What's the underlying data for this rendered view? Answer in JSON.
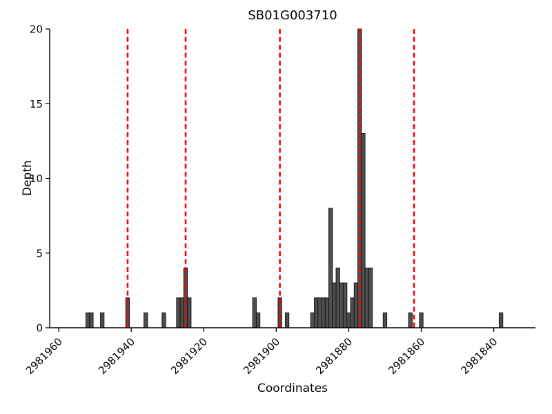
{
  "chart_data": {
    "type": "bar",
    "title": "SB01G003710",
    "xlabel": "Coordinates",
    "ylabel": "Depth",
    "x_axis_reversed": true,
    "xlim": [
      2981962.5,
      2981828.5
    ],
    "ylim": [
      0,
      20
    ],
    "x_ticks": [
      2981960,
      2981940,
      2981920,
      2981900,
      2981880,
      2981860,
      2981840
    ],
    "y_ticks": [
      0,
      5,
      10,
      15,
      20
    ],
    "legend": "none",
    "grid": false,
    "bar_width_units": 1,
    "colors": {
      "bar_fill": "#4f4f4f",
      "bar_edge": "#141414",
      "vline": "#ff0000",
      "axis": "#000000",
      "background": "#ffffff"
    },
    "vlines": [
      2981941,
      2981925,
      2981899,
      2981877,
      2981862
    ],
    "bars": [
      {
        "coordinate": 2981952,
        "depth": 1
      },
      {
        "coordinate": 2981951,
        "depth": 1
      },
      {
        "coordinate": 2981948,
        "depth": 1
      },
      {
        "coordinate": 2981941,
        "depth": 2
      },
      {
        "coordinate": 2981936,
        "depth": 1
      },
      {
        "coordinate": 2981931,
        "depth": 1
      },
      {
        "coordinate": 2981927,
        "depth": 2
      },
      {
        "coordinate": 2981926,
        "depth": 2
      },
      {
        "coordinate": 2981925,
        "depth": 4
      },
      {
        "coordinate": 2981924,
        "depth": 2
      },
      {
        "coordinate": 2981906,
        "depth": 2
      },
      {
        "coordinate": 2981905,
        "depth": 1
      },
      {
        "coordinate": 2981899,
        "depth": 2
      },
      {
        "coordinate": 2981897,
        "depth": 1
      },
      {
        "coordinate": 2981890,
        "depth": 1
      },
      {
        "coordinate": 2981889,
        "depth": 2
      },
      {
        "coordinate": 2981888,
        "depth": 2
      },
      {
        "coordinate": 2981887,
        "depth": 2
      },
      {
        "coordinate": 2981886,
        "depth": 2
      },
      {
        "coordinate": 2981885,
        "depth": 8
      },
      {
        "coordinate": 2981884,
        "depth": 3
      },
      {
        "coordinate": 2981883,
        "depth": 4
      },
      {
        "coordinate": 2981882,
        "depth": 3
      },
      {
        "coordinate": 2981881,
        "depth": 3
      },
      {
        "coordinate": 2981880,
        "depth": 1
      },
      {
        "coordinate": 2981879,
        "depth": 2
      },
      {
        "coordinate": 2981878,
        "depth": 3
      },
      {
        "coordinate": 2981877,
        "depth": 20
      },
      {
        "coordinate": 2981876,
        "depth": 13
      },
      {
        "coordinate": 2981875,
        "depth": 4
      },
      {
        "coordinate": 2981874,
        "depth": 4
      },
      {
        "coordinate": 2981870,
        "depth": 1
      },
      {
        "coordinate": 2981863,
        "depth": 1
      },
      {
        "coordinate": 2981860,
        "depth": 1
      },
      {
        "coordinate": 2981838,
        "depth": 1
      }
    ]
  }
}
